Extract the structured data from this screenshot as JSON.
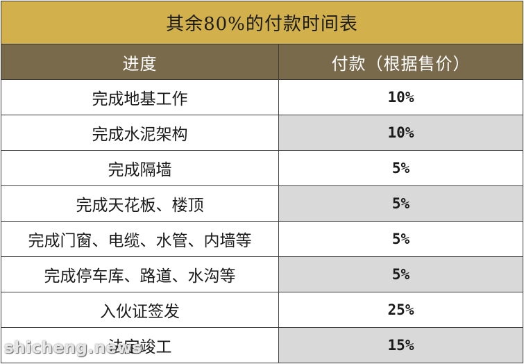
{
  "table": {
    "title": "其余80%的付款时间表",
    "headers": [
      "进度",
      "付款（根据售价）"
    ],
    "rows": [
      {
        "stage": "完成地基工作",
        "payment": "10%"
      },
      {
        "stage": "完成水泥架构",
        "payment": "10%"
      },
      {
        "stage": "完成隔墙",
        "payment": "5%"
      },
      {
        "stage": "完成天花板、楼顶",
        "payment": "5%"
      },
      {
        "stage": "完成门窗、电缆、水管、内墙等",
        "payment": "5%"
      },
      {
        "stage": "完成停车库、路道、水沟等",
        "payment": "5%"
      },
      {
        "stage": "入伙证签发",
        "payment": "25%"
      },
      {
        "stage": "法定竣工",
        "payment": "15%"
      }
    ]
  },
  "watermark": "shicheng.news",
  "colors": {
    "title_bg": "#d2b14c",
    "header_bg": "#7a6a4c",
    "alt_row_bg": "#d9d9d9"
  }
}
